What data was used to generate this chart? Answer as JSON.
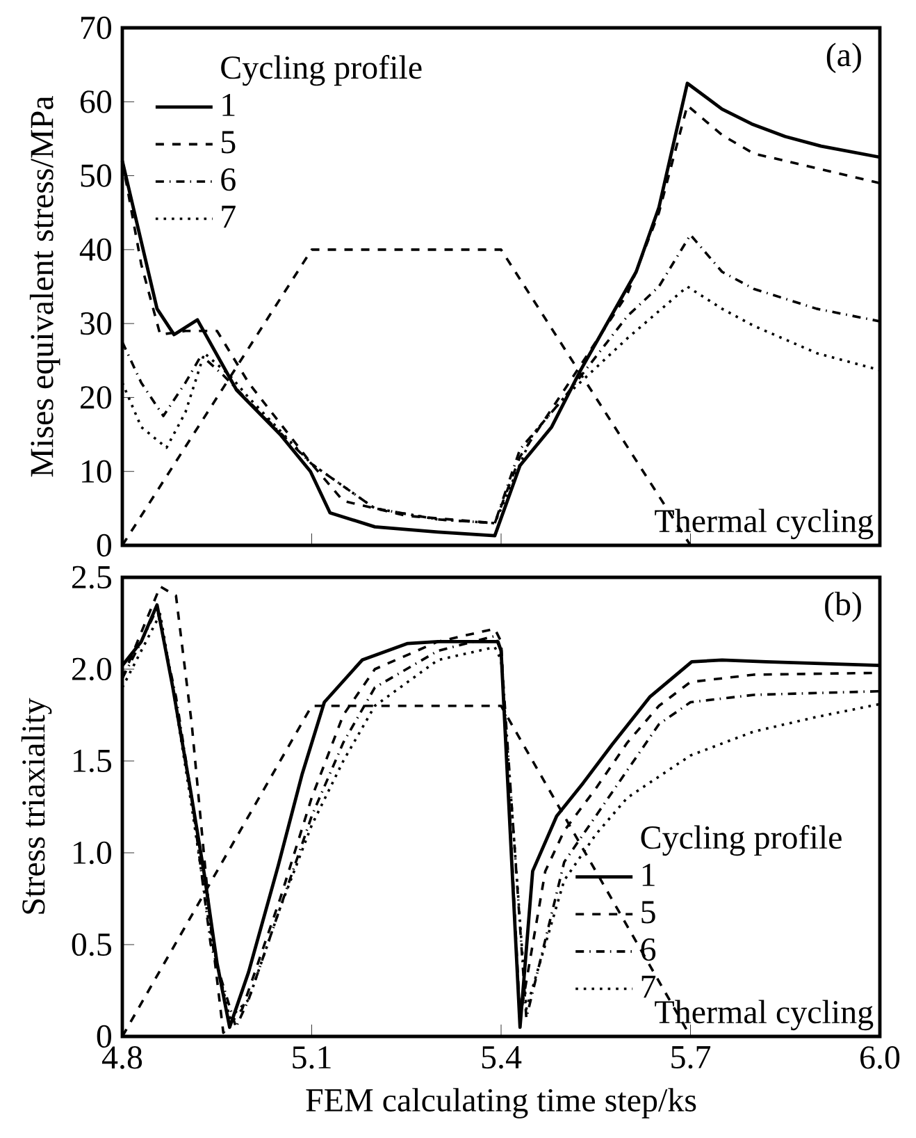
{
  "chart_data": [
    {
      "type": "line",
      "ylabel": "Mises equivalent stress/MPa",
      "legend_title": "Cycling profile",
      "annotations": [
        "(a)"
      ],
      "xlim": [
        4.8,
        6.0
      ],
      "xticks": [
        4.8,
        5.1,
        5.4,
        5.7,
        6.0
      ],
      "ylim": [
        0,
        70
      ],
      "yticks": [
        0,
        10,
        20,
        30,
        40,
        50,
        60,
        70
      ],
      "tick_labels": "y",
      "legend": "top left",
      "grid": false,
      "series": [
        {
          "name": "1",
          "color": "#000000",
          "line_style": "solid",
          "x": [
            4.8,
            4.855,
            4.882,
            4.919,
            4.981,
            5.05,
            5.098,
            5.129,
            5.2,
            5.3,
            5.39,
            5.43,
            5.48,
            5.526,
            5.614,
            5.65,
            5.695,
            5.75,
            5.797,
            5.85,
            5.907,
            6.0
          ],
          "values": [
            52,
            32,
            28.5,
            30.5,
            21,
            15,
            10,
            4.4,
            2.5,
            1.8,
            1.3,
            10.8,
            16,
            23.7,
            37,
            45.7,
            62.5,
            59,
            57,
            55.3,
            54,
            52.5
          ]
        },
        {
          "name": "5",
          "color": "#000000",
          "line_style": "dashed",
          "x": [
            4.8,
            4.83,
            4.86,
            4.9,
            4.95,
            5.0,
            5.1,
            5.15,
            5.25,
            5.39,
            5.43,
            5.5,
            5.6,
            5.65,
            5.695,
            5.75,
            5.8,
            5.9,
            6.0
          ],
          "values": [
            52,
            38,
            28.5,
            29,
            29,
            22,
            11,
            6,
            4,
            3,
            12,
            21,
            34,
            45,
            59.5,
            55.5,
            53,
            51,
            49
          ]
        },
        {
          "name": "6",
          "color": "#000000",
          "line_style": "dashdotted",
          "x": [
            4.8,
            4.83,
            4.865,
            4.9,
            4.925,
            4.96,
            5.0,
            5.1,
            5.2,
            5.3,
            5.39,
            5.43,
            5.5,
            5.6,
            5.65,
            5.7,
            5.75,
            5.8,
            5.9,
            6.0
          ],
          "values": [
            27.5,
            22,
            17.5,
            22,
            25.7,
            23,
            19.5,
            11,
            5,
            3.5,
            3,
            13,
            20,
            31,
            35,
            42,
            37,
            34.7,
            32,
            30.3
          ]
        },
        {
          "name": "7",
          "color": "#000000",
          "line_style": "dotted",
          "x": [
            4.8,
            4.83,
            4.87,
            4.9,
            4.93,
            4.97,
            5.0,
            5.1,
            5.2,
            5.3,
            5.39,
            5.45,
            5.5,
            5.6,
            5.695,
            5.75,
            5.8,
            5.9,
            6.0
          ],
          "values": [
            22,
            16,
            13.2,
            18,
            26,
            23,
            20,
            11,
            5,
            3.5,
            3,
            15,
            20,
            28,
            35,
            32,
            29.7,
            26,
            23.7
          ]
        },
        {
          "name": "Thermal cycling",
          "color": "#000000",
          "line_style": "dashed",
          "x": [
            4.8,
            5.1,
            5.4,
            5.7
          ],
          "values": [
            0,
            40,
            40,
            0
          ]
        }
      ]
    },
    {
      "type": "line",
      "xlabel": "FEM calculating time step/ks",
      "ylabel": "Stress triaxiality",
      "legend_title": "Cycling profile",
      "annotations": [
        "(b)"
      ],
      "xlim": [
        4.8,
        6.0
      ],
      "xticks": [
        4.8,
        5.1,
        5.4,
        5.7,
        {
          "value": 6.0,
          "label": "6.0"
        }
      ],
      "ylim": [
        0,
        2.5
      ],
      "yticks": [
        0,
        0.5,
        {
          "value": 1.0,
          "label": "1.0"
        },
        1.5,
        {
          "value": 2.0,
          "label": "2.0"
        },
        2.5
      ],
      "legend": "bottom right",
      "grid": false,
      "series": [
        {
          "name": "1",
          "color": "#000000",
          "line_style": "solid",
          "x": [
            4.8,
            4.83,
            4.855,
            4.88,
            4.908,
            4.93,
            4.95,
            4.97,
            5.0,
            5.047,
            5.085,
            5.12,
            5.18,
            5.252,
            5.3,
            5.395,
            5.4,
            5.43,
            5.45,
            5.488,
            5.53,
            5.576,
            5.636,
            5.702,
            5.75,
            5.82,
            6.0
          ],
          "values": [
            2.02,
            2.15,
            2.35,
            1.9,
            1.34,
            0.88,
            0.4,
            0.05,
            0.35,
            0.93,
            1.43,
            1.82,
            2.05,
            2.14,
            2.15,
            2.15,
            2.1,
            0.05,
            0.9,
            1.2,
            1.38,
            1.59,
            1.85,
            2.04,
            2.05,
            2.04,
            2.02
          ]
        },
        {
          "name": "5",
          "color": "#000000",
          "line_style": "dashed",
          "x": [
            4.8,
            4.83,
            4.86,
            4.885,
            4.91,
            4.94,
            4.96,
            4.99,
            5.05,
            5.1,
            5.15,
            5.2,
            5.3,
            5.39,
            5.4,
            5.43,
            5.47,
            5.5,
            5.55,
            5.6,
            5.65,
            5.7,
            5.8,
            6.0
          ],
          "values": [
            1.95,
            2.2,
            2.45,
            2.4,
            1.7,
            0.6,
            0.02,
            0.15,
            0.75,
            1.3,
            1.75,
            2.0,
            2.15,
            2.22,
            2.15,
            0.1,
            0.9,
            1.12,
            1.35,
            1.6,
            1.8,
            1.93,
            1.97,
            1.98
          ]
        },
        {
          "name": "6",
          "color": "#000000",
          "line_style": "dashdotted",
          "x": [
            4.8,
            4.83,
            4.855,
            4.885,
            4.91,
            4.94,
            4.98,
            5.0,
            5.05,
            5.1,
            5.15,
            5.2,
            5.3,
            5.39,
            5.4,
            5.44,
            5.5,
            5.55,
            5.6,
            5.65,
            5.7,
            5.8,
            6.0
          ],
          "values": [
            1.95,
            2.15,
            2.33,
            1.85,
            1.3,
            0.5,
            0.05,
            0.2,
            0.7,
            1.2,
            1.6,
            1.9,
            2.1,
            2.18,
            2.1,
            0.1,
            0.95,
            1.2,
            1.45,
            1.7,
            1.82,
            1.86,
            1.88
          ]
        },
        {
          "name": "7",
          "color": "#000000",
          "line_style": "dotted",
          "x": [
            4.8,
            4.83,
            4.86,
            4.88,
            4.91,
            4.94,
            4.97,
            5.0,
            5.05,
            5.1,
            5.15,
            5.2,
            5.3,
            5.39,
            5.4,
            5.44,
            5.5,
            5.55,
            5.6,
            5.7,
            5.8,
            5.9,
            6.0
          ],
          "values": [
            1.9,
            2.1,
            2.3,
            1.9,
            1.25,
            0.55,
            0.1,
            0.2,
            0.7,
            1.15,
            1.5,
            1.8,
            2.05,
            2.12,
            2.05,
            0.15,
            0.85,
            1.1,
            1.3,
            1.53,
            1.66,
            1.74,
            1.81
          ]
        },
        {
          "name": "Thermal cycling",
          "color": "#000000",
          "line_style": "dashed",
          "x": [
            4.8,
            5.1,
            5.4,
            5.7
          ],
          "values": [
            0,
            1.8,
            1.8,
            0
          ]
        }
      ]
    }
  ]
}
